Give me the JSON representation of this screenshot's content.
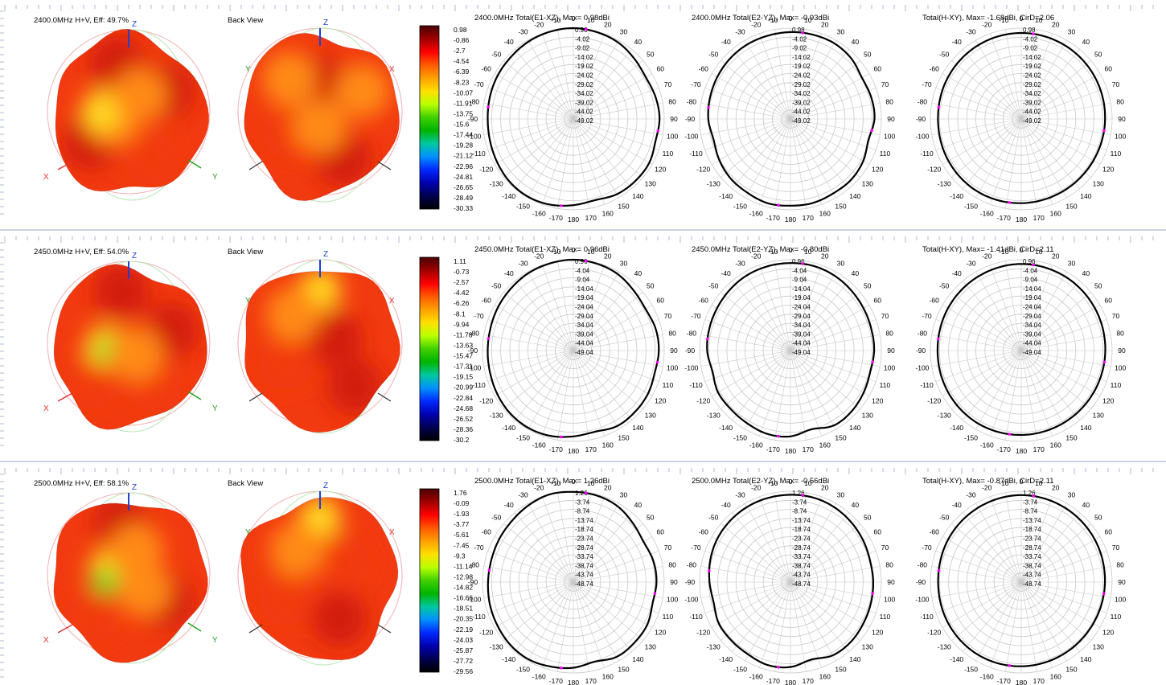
{
  "colors": {
    "grid": "#c8c8c8",
    "pattern_line": "#000000",
    "marker": "#ff00ff",
    "divider": "#9aa6c4",
    "axis_x": "#e03030",
    "axis_y": "#20a020",
    "axis_z": "#2040d0",
    "surface_dark_red": "#d21a0a",
    "surface_red": "#f23a10",
    "surface_orange": "#ff8a18",
    "surface_yellow": "#ffd820",
    "surface_green": "#64dc28"
  },
  "colorbar_stops": [
    "#4a0000",
    "#a00000",
    "#ff0000",
    "#ff5a00",
    "#ffa000",
    "#ffe000",
    "#b8ff00",
    "#40d000",
    "#00b400",
    "#00c8a0",
    "#0090ff",
    "#0028ff",
    "#0000b0",
    "#000050",
    "#000000"
  ],
  "rows": [
    {
      "row_id": "2400",
      "view_title": "2400.0MHz H+V, Eff: 49.7%",
      "back_title": "Back View",
      "axis_labels": {
        "z": "Z",
        "x": "X",
        "y": "Y"
      },
      "colorbar_labels": [
        "0.98",
        "-0.86",
        "-2.7",
        "-4.54",
        "-6.39",
        "-8.23",
        "-10.07",
        "-11.91",
        "-13.75",
        "-15.6",
        "-17.44",
        "-19.28",
        "-21.12",
        "-22.96",
        "-24.81",
        "-26.65",
        "-28.49",
        "-30.33"
      ],
      "polar_titles": [
        "2400.0MHz Total(E1-XZ), Max= 0.98dBi",
        "2400.0MHz Total(E2-YZ), Max= -0.93dBi",
        "Total(H-XY), Max= -1.68dBi, CirD=2.06"
      ],
      "ring_labels": [
        "0.98",
        "-4.02",
        "-9.02",
        "-14.02",
        "-19.02",
        "-24.02",
        "-29.02",
        "-34.02",
        "-39.02",
        "-44.02",
        "-49.02"
      ],
      "color_samples_front": [
        {
          "u": -0.15,
          "v": -0.65,
          "c": "surface_dark_red"
        },
        {
          "u": 0.5,
          "v": -0.3,
          "c": "surface_dark_red"
        },
        {
          "u": -0.5,
          "v": 0.35,
          "c": "surface_dark_red"
        },
        {
          "u": 0.3,
          "v": 0.55,
          "c": "surface_red"
        },
        {
          "u": -0.2,
          "v": 0.05,
          "c": "surface_orange"
        },
        {
          "u": -0.35,
          "v": -0.05,
          "c": "surface_yellow"
        },
        {
          "u": 0.15,
          "v": -0.25,
          "c": "surface_orange"
        }
      ],
      "color_samples_back": [
        {
          "u": 0.0,
          "v": -0.4,
          "c": "surface_dark_red"
        },
        {
          "u": 0.3,
          "v": 0.55,
          "c": "surface_dark_red"
        },
        {
          "u": -0.4,
          "v": 0.2,
          "c": "surface_red"
        },
        {
          "u": -0.4,
          "v": -0.45,
          "c": "surface_orange"
        },
        {
          "u": 0.55,
          "v": -0.3,
          "c": "surface_orange"
        },
        {
          "u": 0.0,
          "v": 0.15,
          "c": "surface_orange"
        }
      ]
    },
    {
      "row_id": "2450",
      "view_title": "2450.0MHz H+V, Eff: 54.0%",
      "back_title": "Back View",
      "axis_labels": {
        "z": "Z",
        "x": "X",
        "y": "Y"
      },
      "colorbar_labels": [
        "1.11",
        "-0.73",
        "-2.57",
        "-4.42",
        "-6.26",
        "-8.1",
        "-9.94",
        "-11.78",
        "-13.63",
        "-15.47",
        "-17.31",
        "-19.15",
        "-20.99",
        "-22.84",
        "-24.68",
        "-26.52",
        "-28.36",
        "-30.2"
      ],
      "polar_titles": [
        "2450.0MHz Total(E1-XZ), Max= 0.96dBi",
        "2450.0MHz Total(E2-YZ), Max= -0.80dBi",
        "Total(H-XY), Max= -1.41dBi, CirD=2.11"
      ],
      "ring_labels": [
        "0.96",
        "-4.04",
        "-9.04",
        "-14.04",
        "-19.04",
        "-24.04",
        "-29.04",
        "-34.04",
        "-39.04",
        "-44.04",
        "-49.04"
      ],
      "color_samples_front": [
        {
          "u": -0.1,
          "v": -0.7,
          "c": "surface_dark_red"
        },
        {
          "u": 0.55,
          "v": -0.2,
          "c": "surface_dark_red"
        },
        {
          "u": -0.5,
          "v": 0.45,
          "c": "surface_red"
        },
        {
          "u": 0.35,
          "v": 0.5,
          "c": "surface_red"
        },
        {
          "u": -0.3,
          "v": 0.0,
          "c": "surface_yellow"
        },
        {
          "u": -0.25,
          "v": 0.05,
          "c": "surface_green"
        },
        {
          "u": 0.1,
          "v": 0.1,
          "c": "surface_orange"
        }
      ],
      "color_samples_back": [
        {
          "u": 0.0,
          "v": -0.7,
          "c": "surface_yellow"
        },
        {
          "u": 0.2,
          "v": -0.1,
          "c": "surface_dark_red"
        },
        {
          "u": -0.45,
          "v": 0.2,
          "c": "surface_red"
        },
        {
          "u": 0.45,
          "v": 0.5,
          "c": "surface_dark_red"
        },
        {
          "u": -0.35,
          "v": -0.4,
          "c": "surface_orange"
        }
      ]
    },
    {
      "row_id": "2500",
      "view_title": "2500.0MHz H+V, Eff: 58.1%",
      "back_title": "Back View",
      "axis_labels": {
        "z": "Z",
        "x": "X",
        "y": "Y"
      },
      "colorbar_labels": [
        "1.76",
        "-0.09",
        "-1.93",
        "-3.77",
        "-5.61",
        "-7.45",
        "-9.3",
        "-11.14",
        "-12.98",
        "-14.82",
        "-16.66",
        "-18.51",
        "-20.35",
        "-22.19",
        "-24.03",
        "-25.87",
        "-27.72",
        "-29.56"
      ],
      "polar_titles": [
        "2500.0MHz Total(E1-XZ), Max= 1.26dBi",
        "2500.0MHz Total(E2-YZ), Max= -0.56dBi",
        "Total(H-XY), Max= -0.87dBi, CirD=2.11"
      ],
      "ring_labels": [
        "1.26",
        "-3.74",
        "-8.74",
        "-13.74",
        "-18.74",
        "-23.74",
        "-28.74",
        "-33.74",
        "-38.74",
        "-43.74",
        "-48.74"
      ],
      "color_samples_front": [
        {
          "u": -0.1,
          "v": -0.7,
          "c": "surface_dark_red"
        },
        {
          "u": 0.5,
          "v": 0.3,
          "c": "surface_dark_red"
        },
        {
          "u": -0.5,
          "v": 0.5,
          "c": "surface_red"
        },
        {
          "u": -0.25,
          "v": -0.1,
          "c": "surface_yellow"
        },
        {
          "u": -0.3,
          "v": 0.05,
          "c": "surface_green"
        },
        {
          "u": 0.1,
          "v": -0.35,
          "c": "surface_orange"
        },
        {
          "u": 0.2,
          "v": 0.15,
          "c": "surface_orange"
        }
      ],
      "color_samples_back": [
        {
          "u": 0.0,
          "v": -0.75,
          "c": "surface_yellow"
        },
        {
          "u": 0.25,
          "v": 0.5,
          "c": "surface_dark_red"
        },
        {
          "u": -0.45,
          "v": 0.25,
          "c": "surface_red"
        },
        {
          "u": 0.3,
          "v": -0.2,
          "c": "surface_red"
        },
        {
          "u": -0.3,
          "v": -0.35,
          "c": "surface_orange"
        }
      ]
    }
  ],
  "angle_labels": [
    "0",
    "10",
    "20",
    "30",
    "40",
    "50",
    "60",
    "70",
    "80",
    "90",
    "100",
    "110",
    "120",
    "130",
    "140",
    "150",
    "160",
    "170",
    "180",
    "-170",
    "-160",
    "-150",
    "-140",
    "-130",
    "-120",
    "-110",
    "-100",
    "-90",
    "-80",
    "-70",
    "-60",
    "-50",
    "-40",
    "-30",
    "-20",
    "-10"
  ],
  "chart_data": [
    {
      "type": "polar",
      "title": "2400.0MHz Total(E1-XZ), Max= 0.98dBi",
      "angle_unit": "deg",
      "r_max": 0.98,
      "r_min": -49.02,
      "r_step": 5,
      "series": [
        {
          "angles": [
            0,
            15,
            30,
            45,
            60,
            75,
            90,
            105,
            120,
            135,
            150,
            165,
            180,
            195,
            210,
            225,
            240,
            255,
            270,
            285,
            300,
            315,
            330,
            345
          ],
          "values": [
            0.98,
            0.5,
            -0.2,
            -1.8,
            -3.0,
            -2.2,
            -1.6,
            -2.2,
            -0.8,
            -0.8,
            -1.2,
            -2.8,
            -1.6,
            -0.2,
            0.5,
            0.2,
            -0.8,
            -1.6,
            -1.9,
            -1.5,
            -1.0,
            -0.6,
            0.2,
            0.7
          ]
        }
      ]
    },
    {
      "type": "polar",
      "title": "2400.0MHz Total(E2-YZ), Max= -0.93dBi",
      "angle_unit": "deg",
      "r_max": 0.98,
      "r_min": -49.02,
      "r_step": 5,
      "series": [
        {
          "angles": [
            0,
            15,
            30,
            45,
            60,
            75,
            90,
            105,
            120,
            135,
            150,
            165,
            180,
            195,
            210,
            225,
            240,
            255,
            270,
            285,
            300,
            315,
            330,
            345
          ],
          "values": [
            -1.2,
            -1.0,
            -0.9,
            -1.8,
            -3.6,
            -3.0,
            -2.8,
            -4.6,
            -2.8,
            -1.8,
            -1.8,
            -1.2,
            -1.3,
            -1.0,
            -2.0,
            -2.6,
            -3.8,
            -5.2,
            -3.8,
            -3.2,
            -2.6,
            -2.0,
            -1.6,
            -1.5
          ]
        }
      ]
    },
    {
      "type": "polar",
      "title": "Total(H-XY), Max= -1.68dBi, CirD=2.06",
      "angle_unit": "deg",
      "r_max": 0.98,
      "r_min": -49.02,
      "r_step": 5,
      "series": [
        {
          "angles": [
            0,
            30,
            60,
            90,
            120,
            150,
            180,
            210,
            240,
            270,
            300,
            330
          ],
          "values": [
            -1.68,
            -1.9,
            -2.4,
            -2.9,
            -3.2,
            -3.1,
            -2.7,
            -2.4,
            -2.8,
            -3.2,
            -2.6,
            -2.0
          ]
        }
      ]
    },
    {
      "type": "polar",
      "title": "2450.0MHz Total(E1-XZ), Max= 0.96dBi",
      "angle_unit": "deg",
      "r_max": 0.96,
      "r_min": -49.04,
      "r_step": 5,
      "series": [
        {
          "angles": [
            0,
            15,
            30,
            45,
            60,
            75,
            90,
            105,
            120,
            135,
            150,
            165,
            180,
            195,
            210,
            225,
            240,
            255,
            270,
            285,
            300,
            315,
            330,
            345
          ],
          "values": [
            0.96,
            0.5,
            -0.4,
            -2.2,
            -3.2,
            -2.2,
            -2.0,
            -2.6,
            -1.6,
            -1.2,
            -1.0,
            -2.8,
            -1.8,
            -0.4,
            0.2,
            0.0,
            -0.8,
            -1.6,
            -1.9,
            -1.8,
            -1.2,
            -0.6,
            0.2,
            0.6
          ]
        }
      ]
    },
    {
      "type": "polar",
      "title": "2450.0MHz Total(E2-YZ), Max= -0.80dBi",
      "angle_unit": "deg",
      "r_max": 0.96,
      "r_min": -49.04,
      "r_step": 5,
      "series": [
        {
          "angles": [
            0,
            15,
            30,
            45,
            60,
            75,
            90,
            105,
            120,
            135,
            150,
            165,
            180,
            195,
            210,
            225,
            240,
            255,
            270,
            285,
            300,
            315,
            330,
            345
          ],
          "values": [
            -0.9,
            -0.8,
            -1.2,
            -2.0,
            -2.6,
            -3.0,
            -3.0,
            -3.6,
            -2.6,
            -1.6,
            -1.4,
            -4.2,
            -1.8,
            -1.4,
            -2.4,
            -3.0,
            -3.0,
            -4.6,
            -3.2,
            -2.8,
            -2.4,
            -1.8,
            -1.2,
            -1.0
          ]
        }
      ]
    },
    {
      "type": "polar",
      "title": "Total(H-XY), Max= -1.41dBi, CirD=2.11",
      "angle_unit": "deg",
      "r_max": 0.96,
      "r_min": -49.04,
      "r_step": 5,
      "series": [
        {
          "angles": [
            0,
            30,
            60,
            90,
            120,
            150,
            180,
            210,
            240,
            270,
            300,
            330
          ],
          "values": [
            -1.41,
            -1.7,
            -2.3,
            -2.8,
            -3.0,
            -2.9,
            -2.6,
            -2.4,
            -2.7,
            -3.0,
            -2.5,
            -1.9
          ]
        }
      ]
    },
    {
      "type": "polar",
      "title": "2500.0MHz Total(E1-XZ), Max= 1.26dBi",
      "angle_unit": "deg",
      "r_max": 1.26,
      "r_min": -48.74,
      "r_step": 5,
      "series": [
        {
          "angles": [
            0,
            15,
            30,
            45,
            60,
            75,
            90,
            105,
            120,
            135,
            150,
            165,
            180,
            195,
            210,
            225,
            240,
            255,
            270,
            285,
            300,
            315,
            330,
            345
          ],
          "values": [
            0.9,
            0.6,
            -0.4,
            -2.6,
            -4.2,
            -3.2,
            -3.0,
            -3.6,
            -1.8,
            -1.4,
            -1.2,
            -3.4,
            -1.6,
            -0.6,
            0.4,
            0.2,
            -0.6,
            -1.2,
            -1.8,
            -2.0,
            -1.6,
            -1.0,
            0.2,
            1.26
          ]
        }
      ]
    },
    {
      "type": "polar",
      "title": "2500.0MHz Total(E2-YZ), Max= -0.56dBi",
      "angle_unit": "deg",
      "r_max": 1.26,
      "r_min": -48.74,
      "r_step": 5,
      "series": [
        {
          "angles": [
            0,
            15,
            30,
            45,
            60,
            75,
            90,
            105,
            120,
            135,
            150,
            165,
            180,
            195,
            210,
            225,
            240,
            255,
            270,
            285,
            300,
            315,
            330,
            345
          ],
          "values": [
            -0.7,
            -0.56,
            -1.0,
            -1.8,
            -2.6,
            -3.4,
            -3.2,
            -3.0,
            -2.6,
            -2.0,
            -2.2,
            -4.6,
            -2.0,
            -1.4,
            -2.6,
            -3.0,
            -3.2,
            -5.0,
            -4.2,
            -3.0,
            -2.0,
            -1.4,
            -1.0,
            -0.8
          ]
        }
      ]
    },
    {
      "type": "polar",
      "title": "Total(H-XY), Max= -0.87dBi, CirD=2.11",
      "angle_unit": "deg",
      "r_max": 1.26,
      "r_min": -48.74,
      "r_step": 5,
      "series": [
        {
          "angles": [
            0,
            30,
            60,
            90,
            120,
            150,
            180,
            210,
            240,
            270,
            300,
            330
          ],
          "values": [
            -0.87,
            -1.3,
            -2.0,
            -2.7,
            -3.0,
            -2.8,
            -2.4,
            -2.2,
            -2.6,
            -3.0,
            -2.2,
            -1.4
          ]
        }
      ]
    }
  ]
}
